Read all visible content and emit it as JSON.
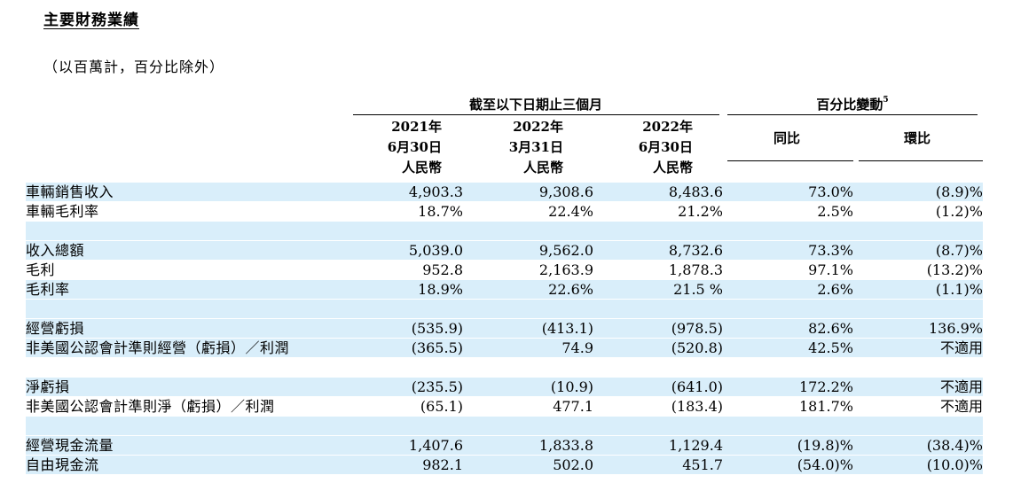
{
  "title": "主要財務業績",
  "subtitle": "（以百萬計，百分比除外）",
  "header": {
    "period_group": "截至以下日期止三個月",
    "change_group": "百分比變動",
    "change_footnote": "5",
    "columns": [
      {
        "year": "2021年",
        "date": "6月30日",
        "currency": "人民幣"
      },
      {
        "year": "2022年",
        "date": "3月31日",
        "currency": "人民幣"
      },
      {
        "year": "2022年",
        "date": "6月30日",
        "currency": "人民幣"
      }
    ],
    "yoy": "同比",
    "qoq": "環比"
  },
  "rows": [
    {
      "label": "車輛銷售收入",
      "values": [
        "4,903.3",
        "9,308.6",
        "8,483.6",
        "73.0%",
        "(8.9)%"
      ]
    },
    {
      "label": "車輛毛利率",
      "values": [
        "18.7%",
        "22.4%",
        "21.2%",
        "2.5%",
        "(1.2)%"
      ]
    },
    {
      "label": "",
      "values": [
        "",
        "",
        "",
        "",
        ""
      ]
    },
    {
      "label": "收入總額",
      "values": [
        "5,039.0",
        "9,562.0",
        "8,732.6",
        "73.3%",
        "(8.7)%"
      ]
    },
    {
      "label": "毛利",
      "values": [
        "952.8",
        "2,163.9",
        "1,878.3",
        "97.1%",
        "(13.2)%"
      ]
    },
    {
      "label": "毛利率",
      "values": [
        "18.9%",
        "22.6%",
        "21.5 %",
        "2.6%",
        "(1.1)%"
      ]
    },
    {
      "label": "",
      "values": [
        "",
        "",
        "",
        "",
        ""
      ]
    },
    {
      "label": "經營虧損",
      "values": [
        "(535.9)",
        "(413.1)",
        "(978.5)",
        "82.6%",
        "136.9%"
      ]
    },
    {
      "label": "非美國公認會計準則經營（虧損）／利潤",
      "values": [
        "(365.5)",
        "74.9",
        "(520.8)",
        "42.5%",
        "不適用"
      ]
    },
    {
      "label": "",
      "values": [
        "",
        "",
        "",
        "",
        ""
      ]
    },
    {
      "label": "淨虧損",
      "values": [
        "(235.5)",
        "(10.9)",
        "(641.0)",
        "172.2%",
        "不適用"
      ]
    },
    {
      "label": "非美國公認會計準則淨（虧損）／利潤",
      "values": [
        "(65.1)",
        "477.1",
        "(183.4)",
        "181.7%",
        "不適用"
      ]
    },
    {
      "label": "",
      "values": [
        "",
        "",
        "",
        "",
        ""
      ]
    },
    {
      "label": "經營現金流量",
      "values": [
        "1,407.6",
        "1,833.8",
        "1,129.4",
        "(19.8)%",
        "(38.4)%"
      ]
    },
    {
      "label": "自由現金流",
      "values": [
        "982.1",
        "502.0",
        "451.7",
        "(54.0)%",
        "(10.0)%"
      ]
    }
  ]
}
